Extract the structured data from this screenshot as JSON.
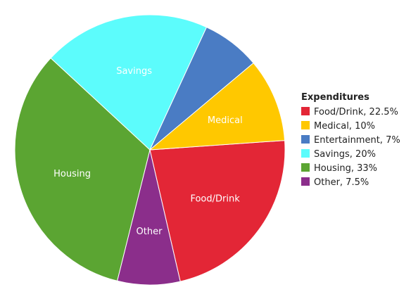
{
  "chart_data": {
    "type": "pie",
    "legend_title": "Expenditures",
    "legend_position": "right",
    "slices": [
      {
        "name": "Food/Drink",
        "value": 22.5,
        "label": "Food/Drink",
        "legend": "Food/Drink, 22.5%",
        "color": "#e32636"
      },
      {
        "name": "Other",
        "value": 7.5,
        "label": "Other",
        "legend": "Other, 7.5%",
        "color": "#8b2e8b"
      },
      {
        "name": "Housing",
        "value": 33,
        "label": "Housing",
        "legend": "Housing, 33%",
        "color": "#5ba532"
      },
      {
        "name": "Savings",
        "value": 20,
        "label": "Savings",
        "legend": "Savings, 20%",
        "color": "#5cfcfc"
      },
      {
        "name": "Entertainment",
        "value": 7,
        "label": "",
        "legend": "Entertainment, 7%",
        "color": "#4a7cc4"
      },
      {
        "name": "Medical",
        "value": 10,
        "label": "Medical",
        "legend": "Medical, 10%",
        "color": "#ffc800"
      }
    ],
    "legend_order": [
      "Food/Drink",
      "Medical",
      "Entertainment",
      "Savings",
      "Housing",
      "Other"
    ]
  }
}
